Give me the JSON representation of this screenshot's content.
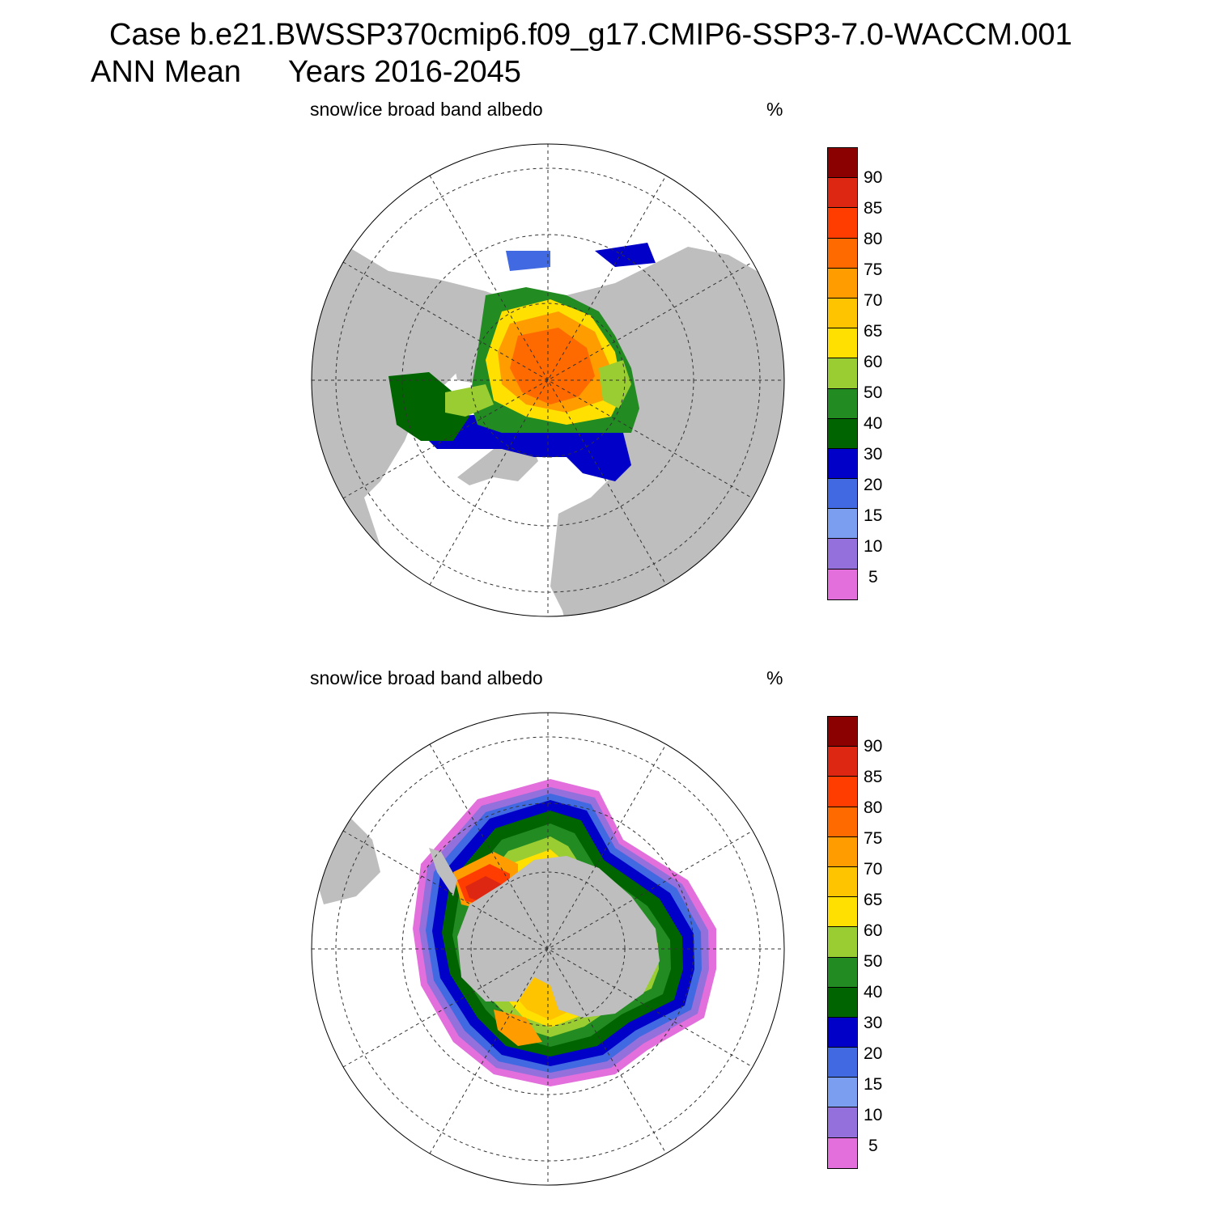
{
  "header": {
    "case_line": "Case b.e21.BWSSP370cmip6.f09_g17.CMIP6-SSP3-7.0-WACCM.001",
    "season": "ANN Mean",
    "years": "Years 2016-2045"
  },
  "colors": {
    "land": "#bebebe",
    "ocean": "#ffffff",
    "levels": [
      "#e26fdb",
      "#9370db",
      "#7b9ef0",
      "#4169e1",
      "#0000c8",
      "#006400",
      "#228b22",
      "#9acd32",
      "#ffe000",
      "#ffc400",
      "#ff9c00",
      "#ff6a00",
      "#ff3d00",
      "#dd2712",
      "#8b0000"
    ]
  },
  "colorbar_labels": [
    "5",
    "10",
    "15",
    "20",
    "30",
    "40",
    "50",
    "60",
    "65",
    "70",
    "75",
    "80",
    "85",
    "90"
  ],
  "panels": [
    {
      "id": "north",
      "title": "snow/ice broad band albedo",
      "units": "%",
      "hemisphere": "Northern (polar stereographic)"
    },
    {
      "id": "south",
      "title": "snow/ice broad band albedo",
      "units": "%",
      "hemisphere": "Southern (polar stereographic)"
    }
  ]
}
